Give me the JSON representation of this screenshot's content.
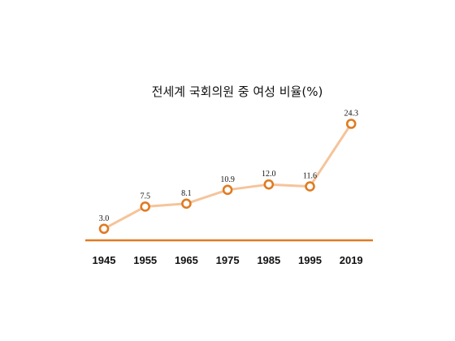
{
  "chart_data": {
    "type": "line",
    "title": "전세계 국회의원 중 여성 비율(%)",
    "categories": [
      "1945",
      "1955",
      "1965",
      "1975",
      "1985",
      "1995",
      "2019"
    ],
    "series": [
      {
        "values": [
          3.0,
          7.5,
          8.1,
          10.9,
          12.0,
          11.6,
          24.3
        ]
      }
    ],
    "data_labels": [
      "3.0",
      "7.5",
      "8.1",
      "10.9",
      "12.0",
      "11.6",
      "24.3"
    ],
    "ylim": [
      0,
      30
    ],
    "grid": false,
    "legend": "none"
  },
  "colors": {
    "line": "#f5c49a",
    "marker": "#e07b22",
    "axis": "#e07b22"
  }
}
